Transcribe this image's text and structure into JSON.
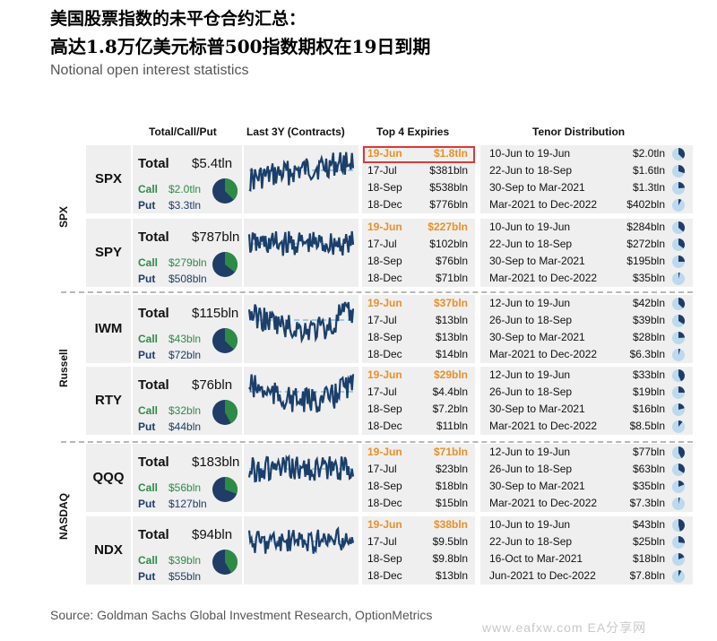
{
  "title_line1": "美国股票指数的未平仓合约汇总：",
  "title_line2": "高达1.8万亿美元标普500指数期权在19日到期",
  "subtitle": "Notional open interest statistics",
  "headers": {
    "total_call_put": "Total/Call/Put",
    "last3y": "Last 3Y (Contracts)",
    "top4": "Top 4 Expiries",
    "tenor": "Tenor Distribution"
  },
  "groups": [
    "SPX",
    "Russell",
    "NASDAQ"
  ],
  "total_label": "Total",
  "call_label": "Call",
  "put_label": "Put",
  "colors": {
    "call": "#2e8b45",
    "put": "#1f3d66",
    "line": "#1a3f6b",
    "dash": "#9ec8e8",
    "highlight_expiry": "#e8902a",
    "highlight_box": "#d93a3a"
  },
  "chart_data": {
    "type": "table",
    "rows": [
      {
        "ticker": "SPX",
        "group": "SPX",
        "total": "$5.4tln",
        "call": "$2.0tln",
        "put": "$3.3tln",
        "call_share": 0.377,
        "expiries": [
          [
            "19-Jun",
            "$1.8tln"
          ],
          [
            "17-Jul",
            "$381bln"
          ],
          [
            "18-Sep",
            "$538bln"
          ],
          [
            "18-Dec",
            "$776bln"
          ]
        ],
        "tenors": [
          [
            "10-Jun to 19-Jun",
            "$2.0tln",
            0.37
          ],
          [
            "22-Jun to 18-Sep",
            "$1.6tln",
            0.3
          ],
          [
            "30-Sep to Mar-2021",
            "$1.3tln",
            0.24
          ],
          [
            "Mar-2021 to Dec-2022",
            "$402bln",
            0.08
          ]
        ]
      },
      {
        "ticker": "SPY",
        "group": "SPX",
        "total": "$787bln",
        "call": "$279bln",
        "put": "$508bln",
        "call_share": 0.355,
        "expiries": [
          [
            "19-Jun",
            "$227bln"
          ],
          [
            "17-Jul",
            "$102bln"
          ],
          [
            "18-Sep",
            "$76bln"
          ],
          [
            "18-Dec",
            "$71bln"
          ]
        ],
        "tenors": [
          [
            "10-Jun to 19-Jun",
            "$284bln",
            0.36
          ],
          [
            "22-Jun to 18-Sep",
            "$272bln",
            0.35
          ],
          [
            "30-Sep to Mar-2021",
            "$195bln",
            0.25
          ],
          [
            "Mar-2021 to Dec-2022",
            "$35bln",
            0.04
          ]
        ]
      },
      {
        "ticker": "IWM",
        "group": "Russell",
        "total": "$115bln",
        "call": "$43bln",
        "put": "$72bln",
        "call_share": 0.374,
        "expiries": [
          [
            "19-Jun",
            "$37bln"
          ],
          [
            "17-Jul",
            "$13bln"
          ],
          [
            "18-Sep",
            "$13bln"
          ],
          [
            "18-Dec",
            "$14bln"
          ]
        ],
        "tenors": [
          [
            "12-Jun to 19-Jun",
            "$42bln",
            0.37
          ],
          [
            "26-Jun to 18-Sep",
            "$39bln",
            0.34
          ],
          [
            "30-Sep to Mar-2021",
            "$28bln",
            0.24
          ],
          [
            "Mar-2021 to Dec-2022",
            "$6.3bln",
            0.05
          ]
        ]
      },
      {
        "ticker": "RTY",
        "group": "Russell",
        "total": "$76bln",
        "call": "$32bln",
        "put": "$44bln",
        "call_share": 0.421,
        "expiries": [
          [
            "19-Jun",
            "$29bln"
          ],
          [
            "17-Jul",
            "$4.4bln"
          ],
          [
            "18-Sep",
            "$7.2bln"
          ],
          [
            "18-Dec",
            "$11bln"
          ]
        ],
        "tenors": [
          [
            "12-Jun to 19-Jun",
            "$33bln",
            0.43
          ],
          [
            "26-Jun to 18-Sep",
            "$19bln",
            0.25
          ],
          [
            "30-Sep to Mar-2021",
            "$16bln",
            0.21
          ],
          [
            "Mar-2021 to Dec-2022",
            "$8.5bln",
            0.11
          ]
        ]
      },
      {
        "ticker": "QQQ",
        "group": "NASDAQ",
        "total": "$183bln",
        "call": "$56bln",
        "put": "$127bln",
        "call_share": 0.306,
        "expiries": [
          [
            "19-Jun",
            "$71bln"
          ],
          [
            "17-Jul",
            "$23bln"
          ],
          [
            "18-Sep",
            "$18bln"
          ],
          [
            "18-Dec",
            "$15bln"
          ]
        ],
        "tenors": [
          [
            "12-Jun to 19-Jun",
            "$77bln",
            0.42
          ],
          [
            "26-Jun to 18-Sep",
            "$63bln",
            0.34
          ],
          [
            "30-Sep to Mar-2021",
            "$35bln",
            0.19
          ],
          [
            "Mar-2021 to Dec-2022",
            "$7.3bln",
            0.04
          ]
        ]
      },
      {
        "ticker": "NDX",
        "group": "NASDAQ",
        "total": "$94bln",
        "call": "$39bln",
        "put": "$55bln",
        "call_share": 0.415,
        "expiries": [
          [
            "19-Jun",
            "$38bln"
          ],
          [
            "17-Jul",
            "$9.5bln"
          ],
          [
            "18-Sep",
            "$9.8bln"
          ],
          [
            "18-Dec",
            "$13bln"
          ]
        ],
        "tenors": [
          [
            "10-Jun to 19-Jun",
            "$43bln",
            0.46
          ],
          [
            "22-Jun to 18-Sep",
            "$25bln",
            0.27
          ],
          [
            "16-Oct to Mar-2021",
            "$18bln",
            0.19
          ],
          [
            "Jun-2021 to Dec-2022",
            "$7.8bln",
            0.08
          ]
        ]
      }
    ]
  },
  "source": "Source: Goldman Sachs Global Investment Research, OptionMetrics",
  "watermark": "www.eafxw.com EA分享网"
}
